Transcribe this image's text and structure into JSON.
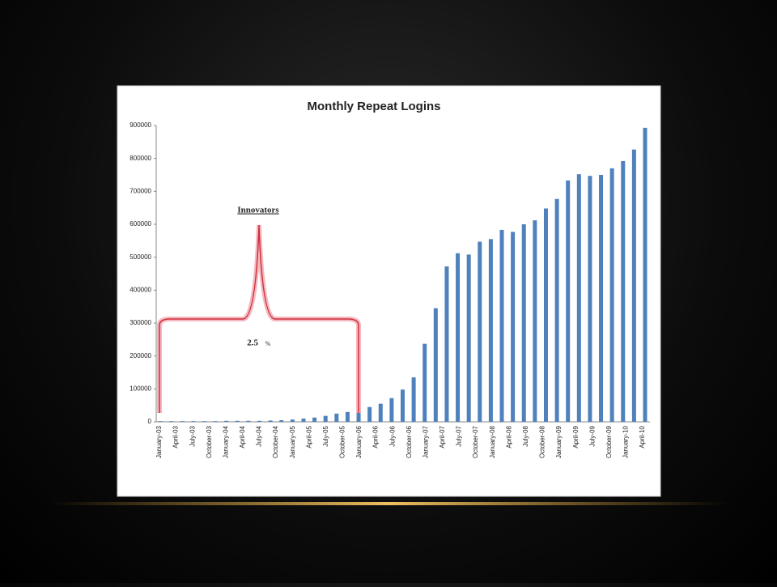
{
  "chart_data": {
    "type": "bar",
    "title": "Monthly Repeat Logins",
    "categories": [
      null,
      null,
      null,
      null,
      null,
      null,
      null,
      null,
      null,
      null,
      null,
      null,
      null,
      null,
      null,
      null,
      null,
      null,
      null,
      null,
      null,
      null,
      null,
      null,
      null,
      null,
      null,
      null,
      null,
      null,
      null,
      null,
      null,
      null,
      null,
      null,
      null,
      null,
      null,
      null,
      null,
      null,
      null,
      null,
      null
    ],
    "values": [
      2000,
      2000,
      2000,
      2000,
      2000,
      2000,
      3000,
      3000,
      3000,
      3000,
      4000,
      5000,
      7000,
      10000,
      13000,
      18000,
      25000,
      30000,
      37000,
      45000,
      55000,
      72000,
      98000,
      135000,
      237000,
      345000,
      472000,
      512000,
      508000,
      547000,
      555000,
      583000,
      577000,
      600000,
      612000,
      648000,
      677000,
      733000,
      752000,
      747000,
      750000,
      770000,
      792000,
      827000,
      893000
    ],
    "color": "#4f81bd",
    "xtick_labels": [
      "January-03",
      "April-03",
      "July-03",
      "October-03",
      "January-04",
      "April-04",
      "July-04",
      "October-04",
      "January-05",
      "April-05",
      "July-05",
      "October-05",
      "January-06",
      "April-06",
      "July-06",
      "October-06",
      "January-07",
      "April-07",
      "July-07",
      "October-07",
      "January-08",
      "April-08",
      "July-08",
      "October-08",
      "January-09",
      "April-09",
      "July-09",
      "October-09",
      "January-10",
      "April-10"
    ],
    "ylim": [
      0,
      900000
    ],
    "yticks": [
      0,
      100000,
      200000,
      300000,
      400000,
      500000,
      600000,
      700000,
      800000,
      900000
    ],
    "grid": false,
    "annotations": [
      "Innovators",
      "2.5",
      "%"
    ]
  }
}
